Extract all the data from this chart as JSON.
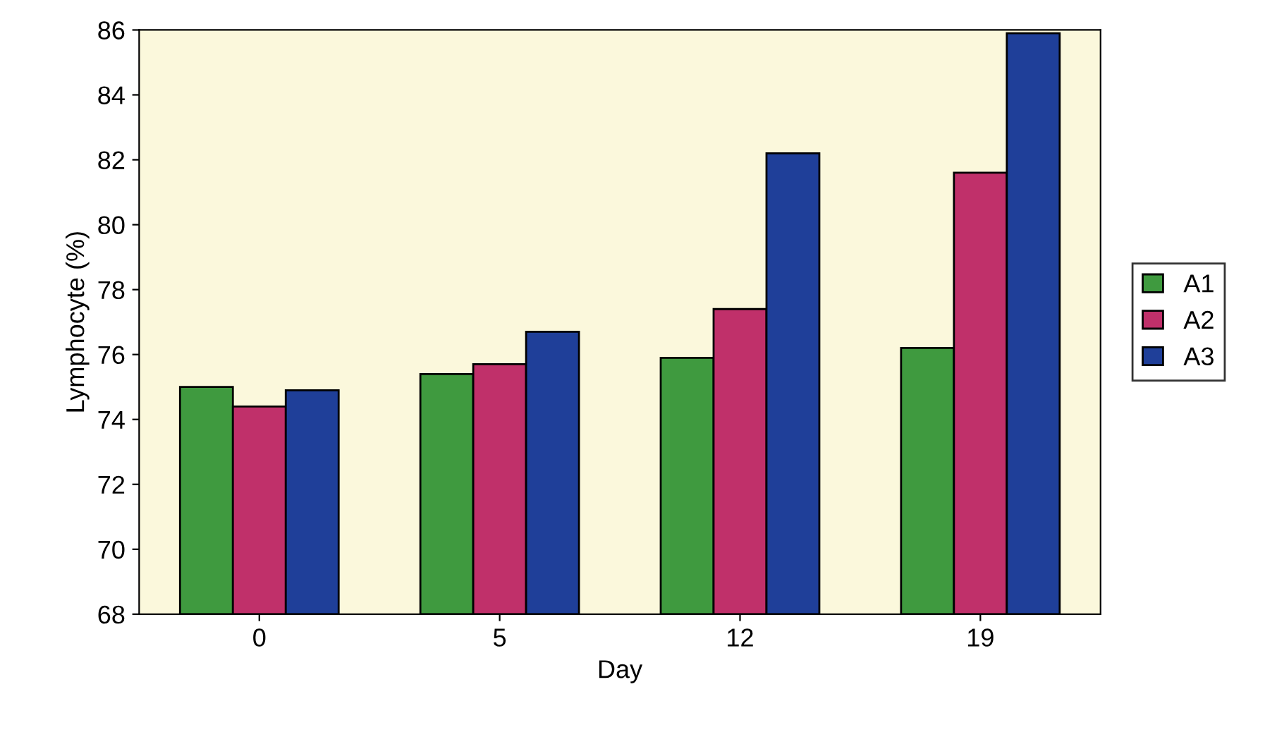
{
  "chart_data": {
    "type": "bar",
    "xlabel": "Day",
    "ylabel": "Lymphocyte (%)",
    "categories": [
      "0",
      "5",
      "12",
      "19"
    ],
    "series": [
      {
        "name": "A1",
        "color": "#3f9a3f",
        "values": [
          75.0,
          75.4,
          75.9,
          76.2
        ]
      },
      {
        "name": "A2",
        "color": "#c0306a",
        "values": [
          74.4,
          75.7,
          77.4,
          81.6
        ]
      },
      {
        "name": "A3",
        "color": "#1f3f99",
        "values": [
          74.9,
          76.7,
          82.2,
          85.9
        ]
      }
    ],
    "ylim": [
      68,
      86
    ],
    "yticks": [
      68,
      70,
      72,
      74,
      76,
      78,
      80,
      82,
      84,
      86
    ],
    "grid": false,
    "legend": "right"
  }
}
